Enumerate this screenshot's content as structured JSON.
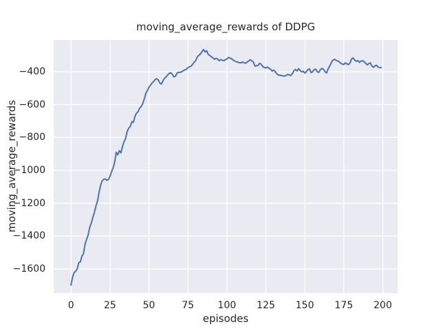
{
  "chart_data": {
    "type": "line",
    "title": "moving_average_rewards of DDPG",
    "xlabel": "episodes",
    "ylabel": "moving_average_rewards",
    "xlim": [
      -11.1,
      209.5
    ],
    "ylim": [
      -1747,
      -207
    ],
    "xticks": [
      0,
      25,
      50,
      75,
      100,
      125,
      150,
      175,
      200
    ],
    "xtick_labels": [
      "0",
      "25",
      "50",
      "75",
      "100",
      "125",
      "150",
      "175",
      "200"
    ],
    "yticks": [
      -400,
      -600,
      -800,
      -1000,
      -1200,
      -1400,
      -1600
    ],
    "ytick_labels": [
      "−400",
      "−600",
      "−800",
      "−1000",
      "−1200",
      "−1400",
      "−1600"
    ],
    "grid": true,
    "legend_position": "none",
    "style": "seaborn-darkgrid",
    "colors": {
      "line": "#4c72b0",
      "plot_background": "#eaeaf2",
      "grid": "#ffffff",
      "text": "#262626",
      "figure_background": "#ffffff"
    },
    "series": [
      {
        "name": "moving_average_rewards",
        "x_start": 0,
        "x_step": 1,
        "values": [
          -1698,
          -1648,
          -1622,
          -1615,
          -1598,
          -1562,
          -1556,
          -1522,
          -1506,
          -1448,
          -1420,
          -1392,
          -1346,
          -1320,
          -1286,
          -1255,
          -1216,
          -1186,
          -1132,
          -1090,
          -1063,
          -1055,
          -1052,
          -1061,
          -1056,
          -1036,
          -1008,
          -984,
          -950,
          -890,
          -906,
          -880,
          -894,
          -855,
          -826,
          -806,
          -764,
          -744,
          -733,
          -704,
          -708,
          -671,
          -652,
          -643,
          -622,
          -612,
          -594,
          -566,
          -531,
          -514,
          -495,
          -481,
          -469,
          -459,
          -447,
          -443,
          -451,
          -469,
          -475,
          -454,
          -440,
          -431,
          -419,
          -410,
          -406,
          -416,
          -431,
          -427,
          -408,
          -404,
          -404,
          -400,
          -394,
          -389,
          -385,
          -376,
          -370,
          -366,
          -355,
          -342,
          -332,
          -310,
          -300,
          -292,
          -278,
          -265,
          -280,
          -272,
          -295,
          -300,
          -310,
          -315,
          -325,
          -318,
          -322,
          -333,
          -326,
          -330,
          -333,
          -327,
          -323,
          -313,
          -317,
          -321,
          -329,
          -335,
          -339,
          -342,
          -345,
          -346,
          -341,
          -345,
          -349,
          -341,
          -334,
          -327,
          -334,
          -342,
          -366,
          -364,
          -361,
          -349,
          -355,
          -369,
          -374,
          -377,
          -372,
          -379,
          -384,
          -396,
          -390,
          -399,
          -413,
          -420,
          -421,
          -423,
          -425,
          -427,
          -422,
          -417,
          -420,
          -423,
          -411,
          -394,
          -386,
          -395,
          -381,
          -393,
          -401,
          -397,
          -408,
          -400,
          -387,
          -383,
          -406,
          -400,
          -386,
          -385,
          -401,
          -404,
          -387,
          -380,
          -386,
          -401,
          -407,
          -381,
          -365,
          -344,
          -330,
          -324,
          -331,
          -334,
          -339,
          -349,
          -353,
          -356,
          -346,
          -352,
          -357,
          -346,
          -322,
          -316,
          -330,
          -337,
          -332,
          -343,
          -336,
          -333,
          -339,
          -348,
          -359,
          -351,
          -346,
          -365,
          -373,
          -364,
          -361,
          -372,
          -374,
          -375
        ]
      }
    ]
  }
}
